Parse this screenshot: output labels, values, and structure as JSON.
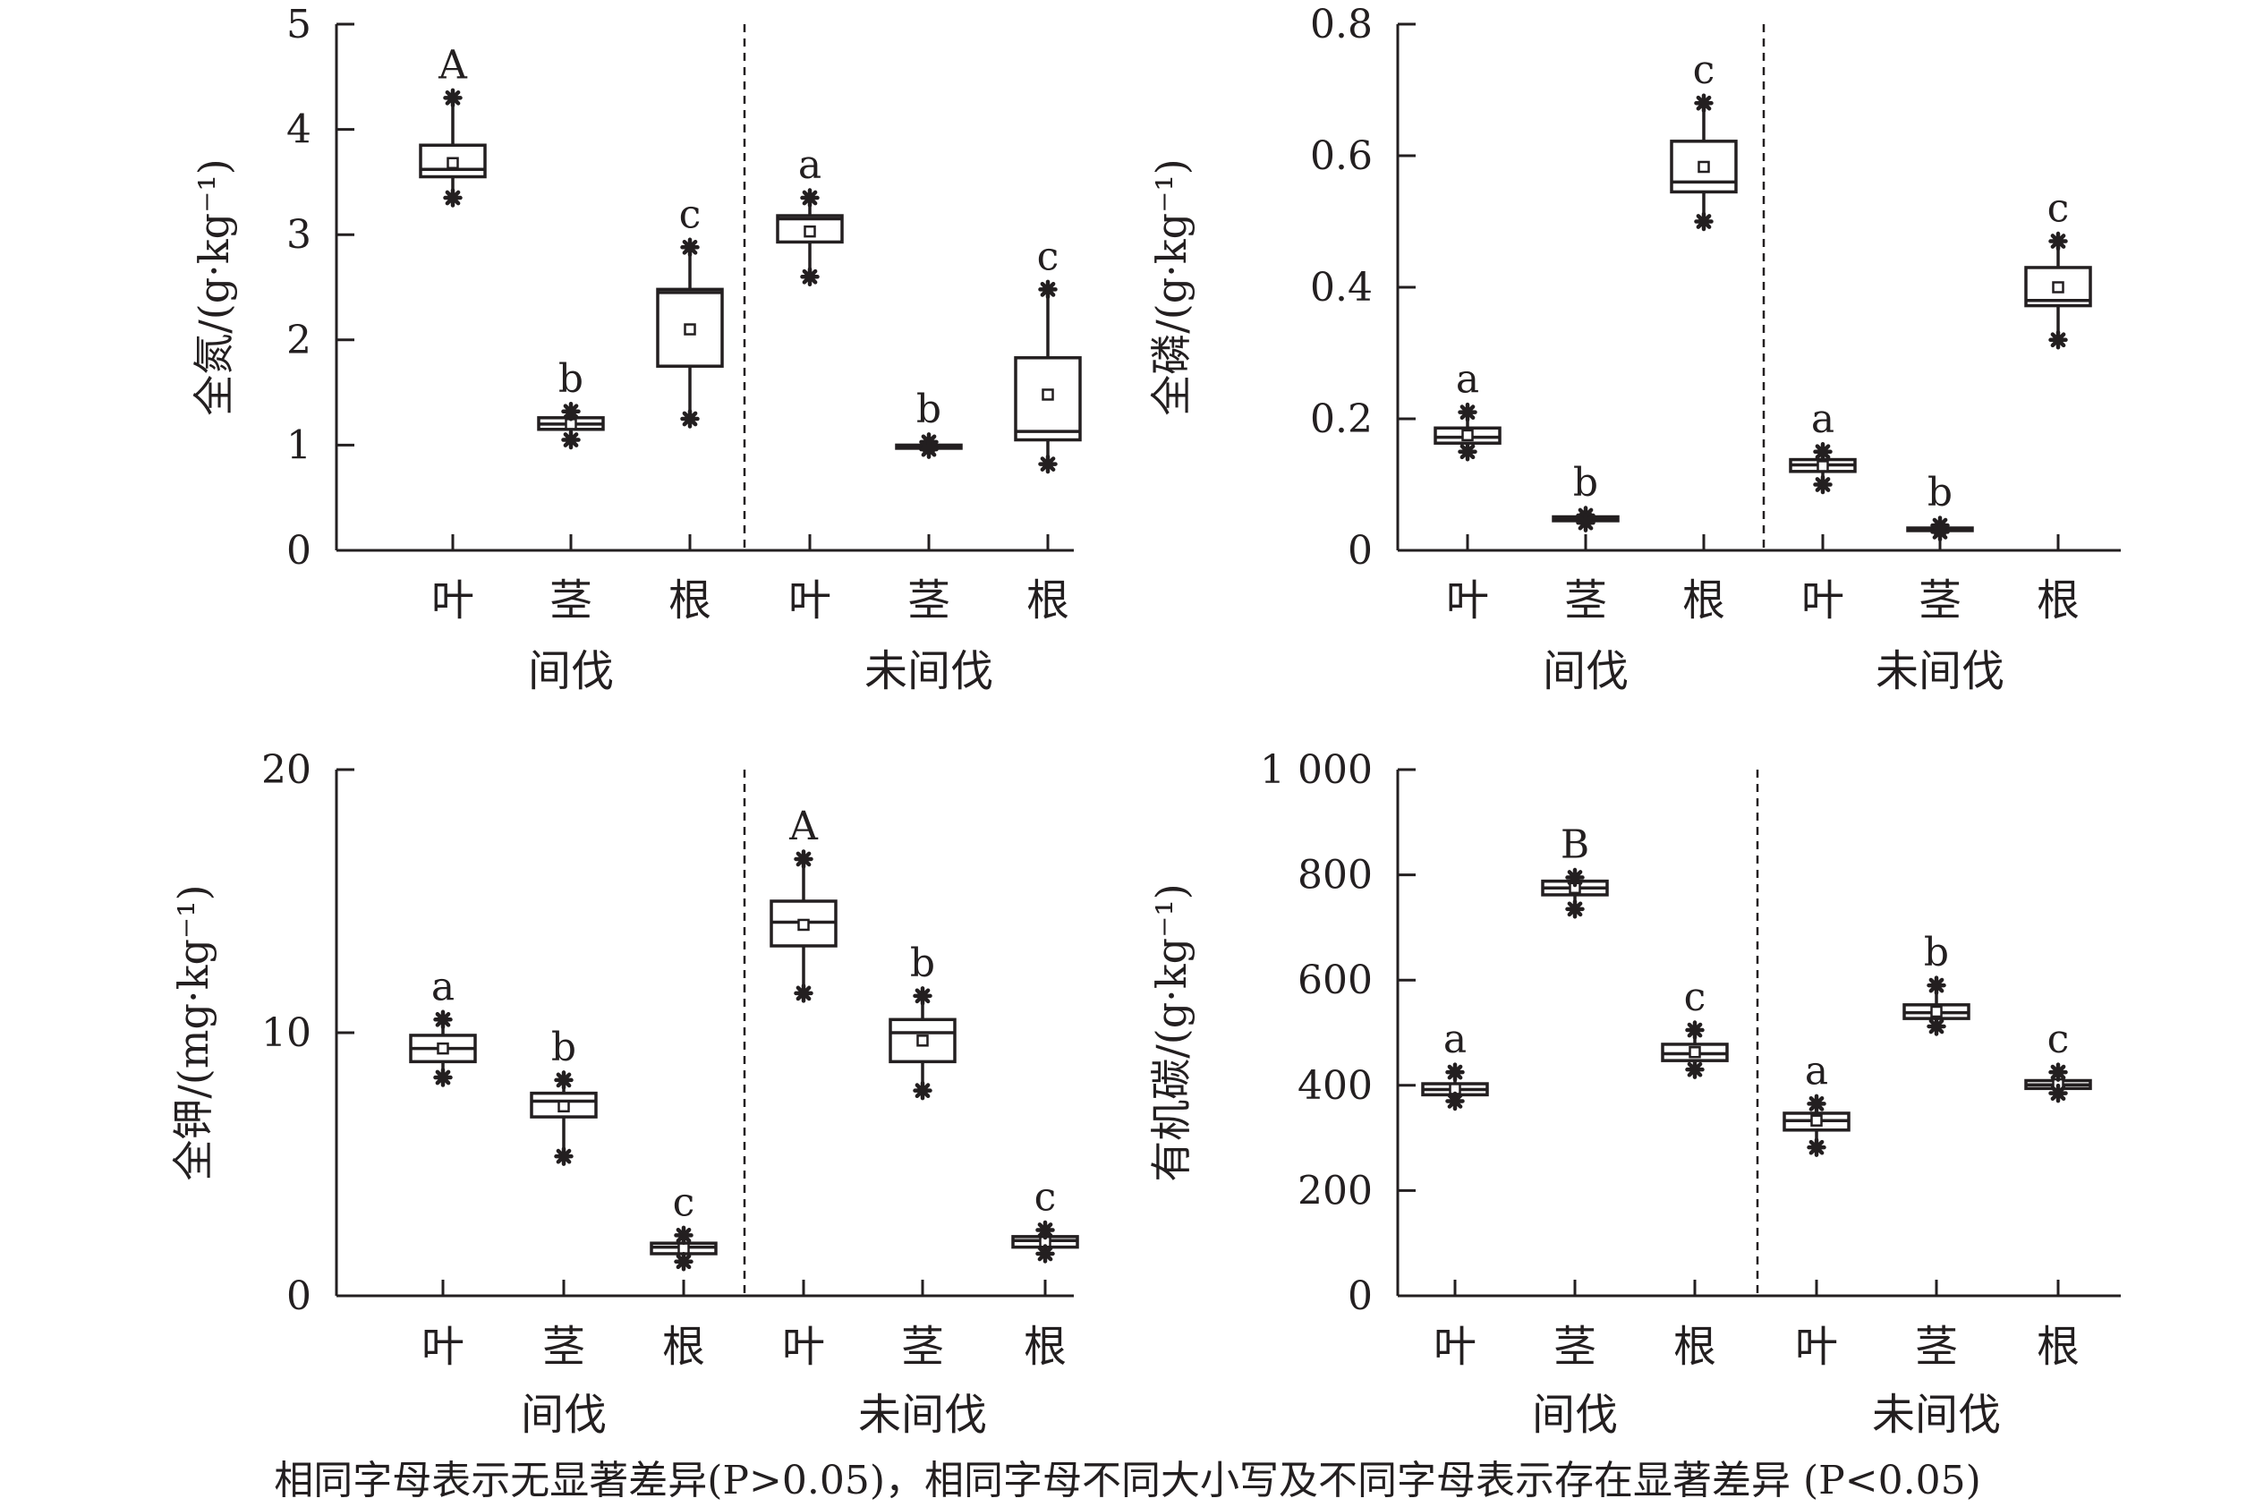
{
  "footnote": "相同字母表示无显著差异(P>0.05)，相同字母不同大小写及不同字母表示存在显著差异 (P<0.05)",
  "chart_data": [
    {
      "type": "box",
      "ylabel": "全氮/(g·kg⁻¹)",
      "ylim": [
        0,
        5
      ],
      "yticks": [
        0,
        1,
        2,
        3,
        4,
        5
      ],
      "ytick_labels": [
        "0",
        "1",
        "2",
        "3",
        "4",
        "5"
      ],
      "categories": [
        "叶",
        "茎",
        "根",
        "叶",
        "茎",
        "根"
      ],
      "groups": [
        "间伐",
        "未间伐"
      ],
      "boxes": [
        {
          "min": 3.35,
          "q1": 3.55,
          "median": 3.62,
          "q3": 3.85,
          "max": 4.3,
          "mean": 3.68,
          "letter": "A"
        },
        {
          "min": 1.05,
          "q1": 1.15,
          "median": 1.2,
          "q3": 1.26,
          "max": 1.32,
          "mean": 1.2,
          "letter": "b"
        },
        {
          "min": 1.25,
          "q1": 1.75,
          "median": 2.45,
          "q3": 2.48,
          "max": 2.88,
          "mean": 2.1,
          "letter": "c"
        },
        {
          "min": 2.6,
          "q1": 2.93,
          "median": 3.15,
          "q3": 3.18,
          "max": 3.35,
          "mean": 3.03,
          "letter": "a"
        },
        {
          "min": 0.96,
          "q1": 0.97,
          "median": 0.99,
          "q3": 1.0,
          "max": 1.03,
          "mean": 0.99,
          "letter": "b"
        },
        {
          "min": 0.82,
          "q1": 1.05,
          "median": 1.13,
          "q3": 1.83,
          "max": 2.48,
          "mean": 1.48,
          "letter": "c"
        }
      ]
    },
    {
      "type": "box",
      "ylabel": "全磷/(g·kg⁻¹)",
      "ylim": [
        0,
        0.8
      ],
      "yticks": [
        0,
        0.2,
        0.4,
        0.6,
        0.8
      ],
      "ytick_labels": [
        "0",
        "0.2",
        "0.4",
        "0.6",
        "0.8"
      ],
      "categories": [
        "叶",
        "茎",
        "根",
        "叶",
        "茎",
        "根"
      ],
      "groups": [
        "间伐",
        "未间伐"
      ],
      "boxes": [
        {
          "min": 0.15,
          "q1": 0.163,
          "median": 0.172,
          "q3": 0.186,
          "max": 0.21,
          "mean": 0.175,
          "letter": "a"
        },
        {
          "min": 0.042,
          "q1": 0.045,
          "median": 0.048,
          "q3": 0.051,
          "max": 0.053,
          "mean": 0.048,
          "letter": "b"
        },
        {
          "min": 0.5,
          "q1": 0.545,
          "median": 0.56,
          "q3": 0.622,
          "max": 0.68,
          "mean": 0.583,
          "letter": "c"
        },
        {
          "min": 0.1,
          "q1": 0.12,
          "median": 0.13,
          "q3": 0.138,
          "max": 0.15,
          "mean": 0.128,
          "letter": "a"
        },
        {
          "min": 0.028,
          "q1": 0.03,
          "median": 0.032,
          "q3": 0.034,
          "max": 0.038,
          "mean": 0.032,
          "letter": "b"
        },
        {
          "min": 0.32,
          "q1": 0.372,
          "median": 0.38,
          "q3": 0.43,
          "max": 0.47,
          "mean": 0.4,
          "letter": "c"
        }
      ]
    },
    {
      "type": "box",
      "ylabel": "全钾/(mg·kg⁻¹)",
      "ylim": [
        0,
        20
      ],
      "yticks": [
        0,
        10,
        20
      ],
      "ytick_labels": [
        "0",
        "10",
        "20"
      ],
      "categories": [
        "叶",
        "茎",
        "根",
        "叶",
        "茎",
        "根"
      ],
      "groups": [
        "间伐",
        "未间伐"
      ],
      "boxes": [
        {
          "min": 8.3,
          "q1": 8.9,
          "median": 9.4,
          "q3": 9.9,
          "max": 10.5,
          "mean": 9.4,
          "letter": "a"
        },
        {
          "min": 5.3,
          "q1": 6.8,
          "median": 7.4,
          "q3": 7.7,
          "max": 8.2,
          "mean": 7.2,
          "letter": "b"
        },
        {
          "min": 1.3,
          "q1": 1.6,
          "median": 1.85,
          "q3": 2.0,
          "max": 2.3,
          "mean": 1.8,
          "letter": "c"
        },
        {
          "min": 11.5,
          "q1": 13.3,
          "median": 14.2,
          "q3": 15.0,
          "max": 16.6,
          "mean": 14.1,
          "letter": "A"
        },
        {
          "min": 7.8,
          "q1": 8.9,
          "median": 10.0,
          "q3": 10.5,
          "max": 11.4,
          "mean": 9.7,
          "letter": "b"
        },
        {
          "min": 1.6,
          "q1": 1.85,
          "median": 2.1,
          "q3": 2.25,
          "max": 2.5,
          "mean": 2.05,
          "letter": "c"
        }
      ]
    },
    {
      "type": "box",
      "ylabel": "有机碳/(g·kg⁻¹)",
      "ylim": [
        0,
        1000
      ],
      "yticks": [
        0,
        200,
        400,
        600,
        800,
        1000
      ],
      "ytick_labels": [
        "0",
        "200",
        "400",
        "600",
        "800",
        "1 000"
      ],
      "categories": [
        "叶",
        "茎",
        "根",
        "叶",
        "茎",
        "根"
      ],
      "groups": [
        "间伐",
        "未间伐"
      ],
      "boxes": [
        {
          "min": 370,
          "q1": 382,
          "median": 392,
          "q3": 403,
          "max": 425,
          "mean": 393,
          "letter": "a"
        },
        {
          "min": 735,
          "q1": 762,
          "median": 775,
          "q3": 788,
          "max": 795,
          "mean": 775,
          "letter": "B"
        },
        {
          "min": 430,
          "q1": 447,
          "median": 460,
          "q3": 478,
          "max": 505,
          "mean": 463,
          "letter": "c"
        },
        {
          "min": 282,
          "q1": 315,
          "median": 333,
          "q3": 347,
          "max": 365,
          "mean": 333,
          "letter": "a"
        },
        {
          "min": 512,
          "q1": 527,
          "median": 538,
          "q3": 553,
          "max": 590,
          "mean": 540,
          "letter": "b"
        },
        {
          "min": 385,
          "q1": 394,
          "median": 401,
          "q3": 409,
          "max": 425,
          "mean": 402,
          "letter": "c"
        }
      ]
    }
  ]
}
